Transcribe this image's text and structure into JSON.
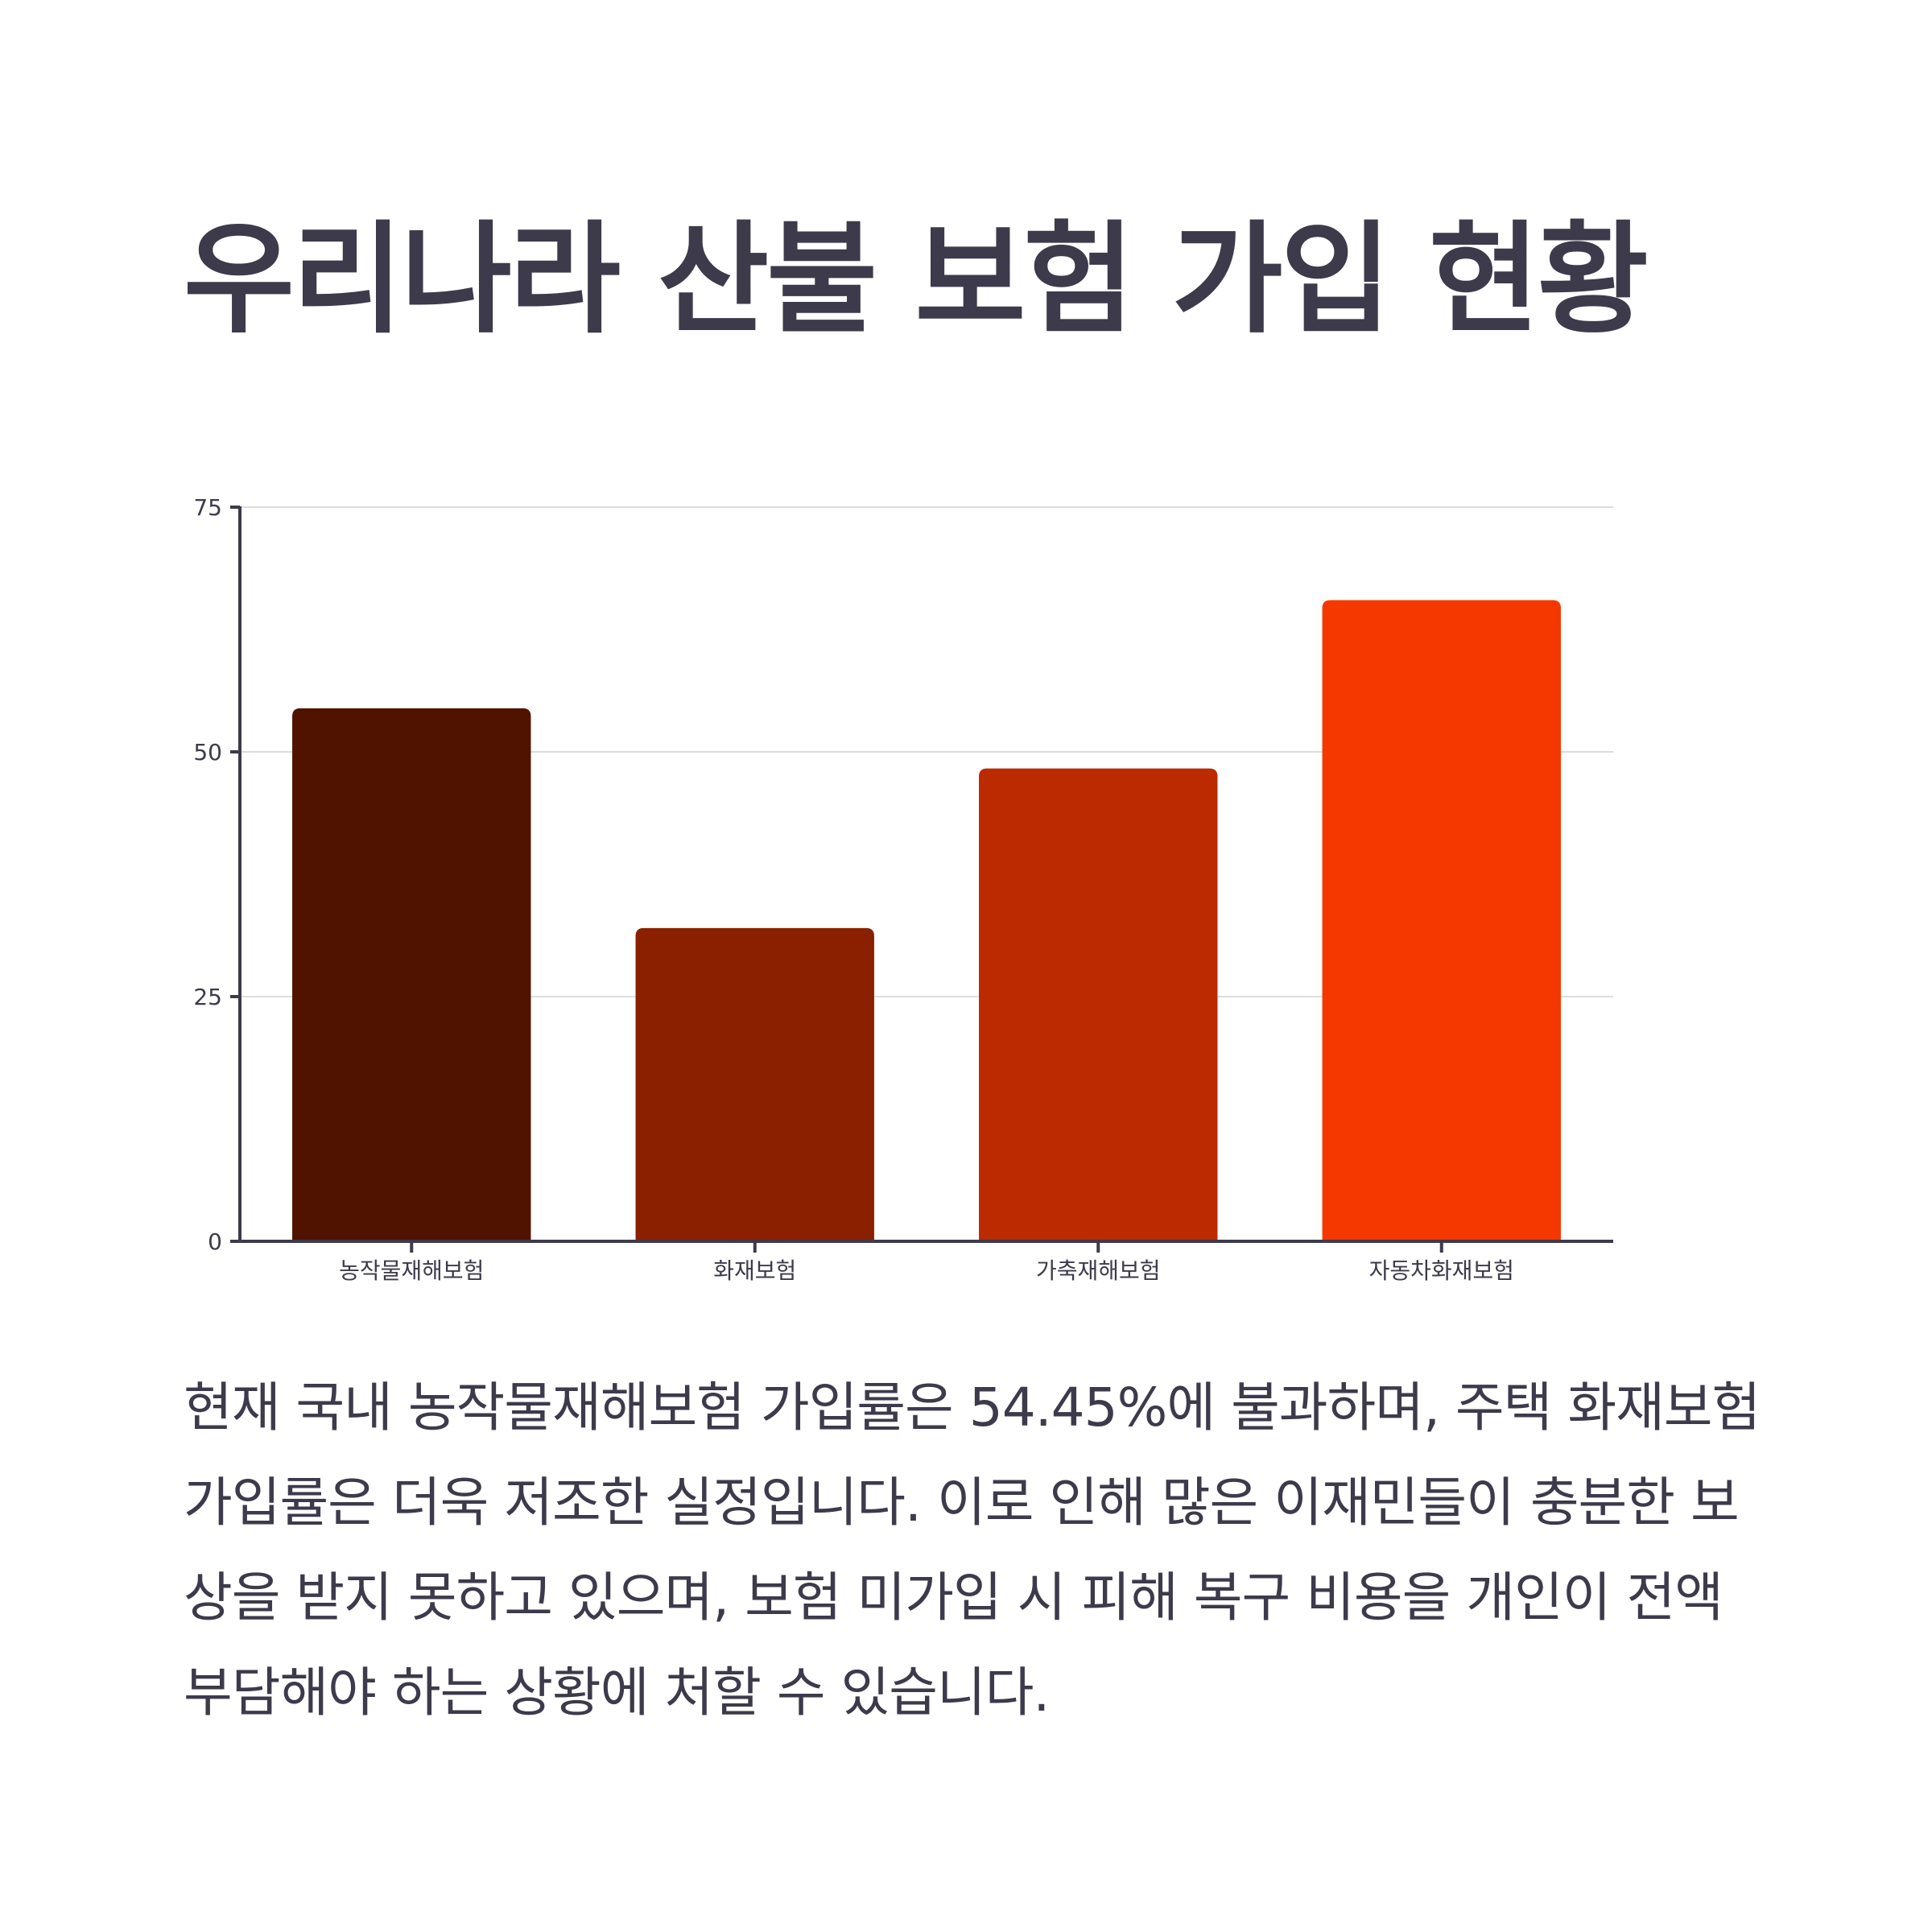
{
  "page": {
    "title": "우리나라 산불 보험 가입 현황",
    "description": "현재 국내 농작물재해보험 가입률은 54.45%에 불과하며, 주택 화재보험 가입률은 더욱 저조한 실정입니다. 이로 인해 많은 이재민들이 충분한 보상을 받지 못하고 있으며, 보험 미가입 시 피해 복구 비용을 개인이 전액 부담해야 하는 상황에 처할 수 있습니다."
  },
  "chart_data": {
    "type": "bar",
    "categories": [
      "농작물재해보험",
      "화재보험",
      "가축재해보험",
      "자동차화재보험"
    ],
    "values": [
      54.45,
      32,
      48.3,
      65.5
    ],
    "colors": [
      "#4f1300",
      "#8a2000",
      "#bb2a00",
      "#f53800"
    ],
    "title": "",
    "xlabel": "",
    "ylabel": "",
    "ylim": [
      0,
      75
    ],
    "yticks": [
      0,
      25,
      50,
      75
    ],
    "grid": true,
    "legend": "none"
  }
}
